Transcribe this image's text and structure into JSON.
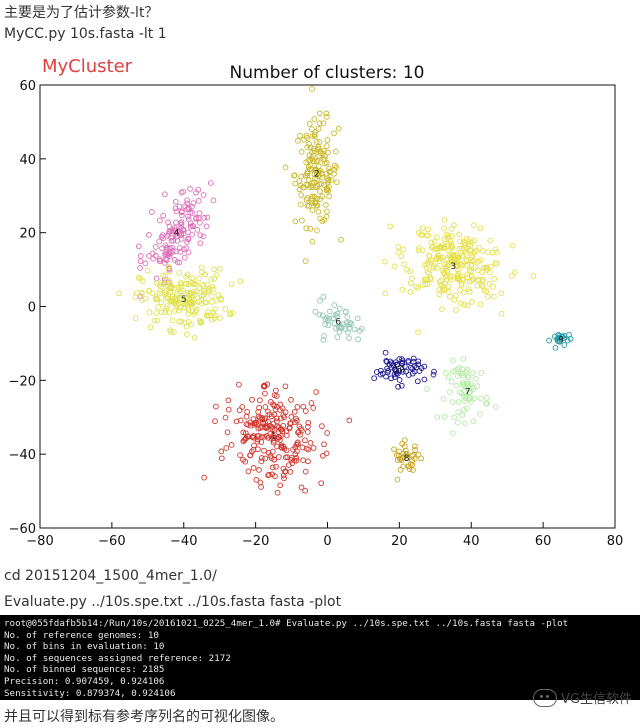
{
  "text": {
    "line1": "主要是为了估计参数-lt？",
    "line2": "MyCC.py 10s.fasta -lt 1",
    "line3": "cd 20151204_1500_4mer_1.0/",
    "line4": "Evaluate.py ../10s.spe.txt ../10s.fasta fasta -plot",
    "line5": "并且可以得到标有参考序列名的可视化图像。",
    "watermark": "VG生信软件"
  },
  "terminal": [
    "root@055fdafb5b14:/Run/10s/20161021_0225_4mer_1.0# Evaluate.py ../10s.spe.txt ../10s.fasta fasta -plot",
    "No. of reference genomes: 10",
    "No. of bins in evaluation: 10",
    "No. of sequences assigned reference: 2172",
    "No. of binned sequences: 2185",
    "Precision: 0.907459, 0.924106",
    "Sensitivity: 0.879374, 0.924106"
  ],
  "chart_data": {
    "type": "scatter",
    "title": "Number of clusters: 10",
    "watermark_label": "MyCluster",
    "xlim": [
      -80,
      80
    ],
    "ylim": [
      -60,
      60
    ],
    "xticks": [
      "−80",
      "−60",
      "−40",
      "−20",
      "0",
      "20",
      "40",
      "60",
      "80"
    ],
    "yticks": [
      "60",
      "40",
      "20",
      "0",
      "−20",
      "−40",
      "−60"
    ],
    "xtick_values": [
      -80,
      -60,
      -40,
      -20,
      0,
      20,
      40,
      60,
      80
    ],
    "ytick_values": [
      60,
      40,
      20,
      0,
      -20,
      -40,
      -60
    ],
    "grid": false,
    "clusters": [
      {
        "label": "1",
        "color": "#d0342c",
        "center": [
          -15,
          -35
        ],
        "spread": [
          6,
          7
        ],
        "points": 230,
        "tilt": 0.9
      },
      {
        "label": "2",
        "color": "#c9b82a",
        "center": [
          -3,
          36
        ],
        "spread": [
          3,
          7
        ],
        "points": 160,
        "tilt": 0
      },
      {
        "label": "3",
        "color": "#e5e04c",
        "center": [
          35,
          11
        ],
        "spread": [
          7,
          5
        ],
        "points": 260,
        "tilt": -0.3
      },
      {
        "label": "4",
        "color": "#dd6fb8",
        "center": [
          -42,
          20
        ],
        "spread": [
          3,
          7
        ],
        "points": 140,
        "tilt": -0.5
      },
      {
        "label": "5",
        "color": "#dfe24e",
        "center": [
          -40,
          2
        ],
        "spread": [
          6,
          4
        ],
        "points": 200,
        "tilt": 0
      },
      {
        "label": "6",
        "color": "#8fc7b2",
        "center": [
          3,
          -4
        ],
        "spread": [
          4,
          2
        ],
        "points": 45,
        "tilt": -0.4
      },
      {
        "label": "7",
        "color": "#b4eaa4",
        "center": [
          39,
          -23
        ],
        "spread": [
          3,
          4
        ],
        "points": 70,
        "tilt": 0
      },
      {
        "label": "8",
        "color": "#c6a21c",
        "center": [
          22,
          -41
        ],
        "spread": [
          2,
          2
        ],
        "points": 35,
        "tilt": 0
      },
      {
        "label": "9",
        "color": "#1f9aa6",
        "center": [
          65,
          -9
        ],
        "spread": [
          1.4,
          1
        ],
        "points": 22,
        "tilt": 0
      },
      {
        "label": "10",
        "color": "#1d1690",
        "center": [
          20,
          -17
        ],
        "spread": [
          3.5,
          2
        ],
        "points": 60,
        "tilt": 0
      }
    ]
  }
}
